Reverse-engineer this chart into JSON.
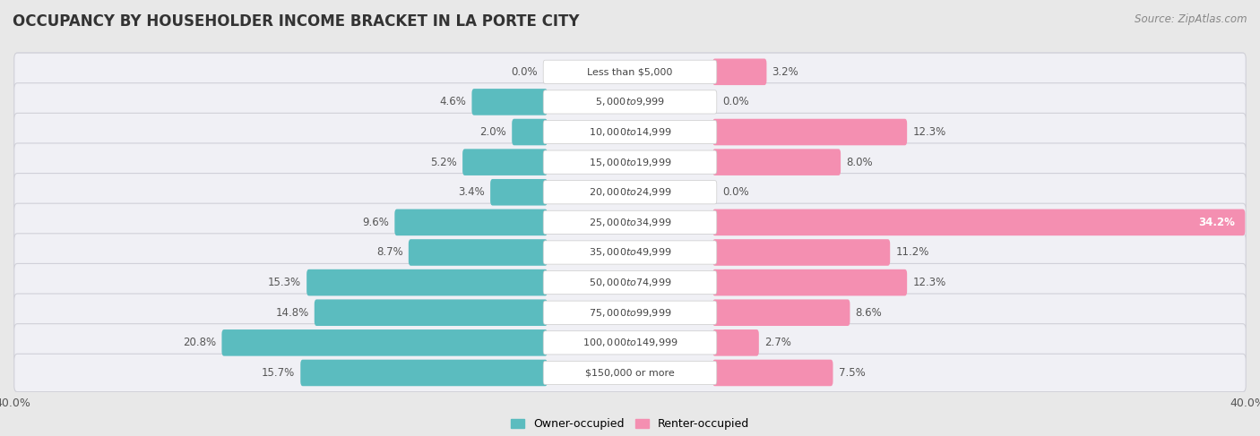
{
  "title": "OCCUPANCY BY HOUSEHOLDER INCOME BRACKET IN LA PORTE CITY",
  "source": "Source: ZipAtlas.com",
  "categories": [
    "Less than $5,000",
    "$5,000 to $9,999",
    "$10,000 to $14,999",
    "$15,000 to $19,999",
    "$20,000 to $24,999",
    "$25,000 to $34,999",
    "$35,000 to $49,999",
    "$50,000 to $74,999",
    "$75,000 to $99,999",
    "$100,000 to $149,999",
    "$150,000 or more"
  ],
  "owner_values": [
    0.0,
    4.6,
    2.0,
    5.2,
    3.4,
    9.6,
    8.7,
    15.3,
    14.8,
    20.8,
    15.7
  ],
  "renter_values": [
    3.2,
    0.0,
    12.3,
    8.0,
    0.0,
    34.2,
    11.2,
    12.3,
    8.6,
    2.7,
    7.5
  ],
  "owner_color": "#5bbcbf",
  "renter_color": "#f48fb1",
  "background_color": "#e8e8e8",
  "row_bg_color": "#f0f0f5",
  "row_border_color": "#d0d0d8",
  "bar_bg_color": "#ffffff",
  "xlim": 40.0,
  "bar_height": 0.58,
  "legend_owner": "Owner-occupied",
  "legend_renter": "Renter-occupied",
  "title_fontsize": 12,
  "source_fontsize": 8.5,
  "label_fontsize": 8.5,
  "category_fontsize": 8.0,
  "legend_fontsize": 9,
  "axis_label_fontsize": 9
}
